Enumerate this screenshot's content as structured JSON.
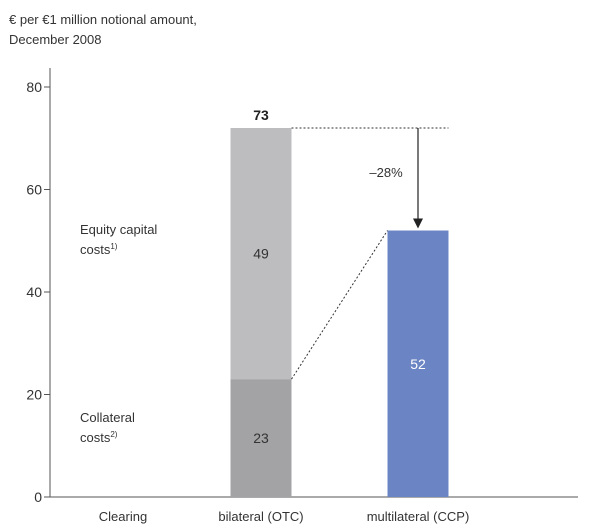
{
  "chart_data": {
    "type": "bar",
    "stacked": true,
    "subtitle_lines": [
      "€ per €1 million notional amount,",
      "December 2008"
    ],
    "x_axis_title": "Clearing",
    "categories": [
      "bilateral (OTC)",
      "multilateral (CCP)"
    ],
    "series": [
      {
        "name": "Collateral costs",
        "values": [
          23,
          null
        ],
        "color": "#a3a3a5"
      },
      {
        "name": "Equity capital costs",
        "values": [
          49,
          null
        ],
        "color": "#bdbdbf"
      },
      {
        "name": "",
        "values": [
          null,
          52
        ],
        "color": "#6b85c4"
      }
    ],
    "totals": [
      "73",
      null
    ],
    "yticks": [
      0,
      20,
      40,
      60,
      80
    ],
    "ylim": [
      0,
      80
    ],
    "series_labels": [
      {
        "text": "Collateral",
        "sup_line": "costs",
        "sup": "2)"
      },
      {
        "text": "Equity capital",
        "sup_line": "costs",
        "sup": "1)"
      }
    ],
    "change_annotation": "–28%",
    "grid": false,
    "legend": "inline-left"
  }
}
